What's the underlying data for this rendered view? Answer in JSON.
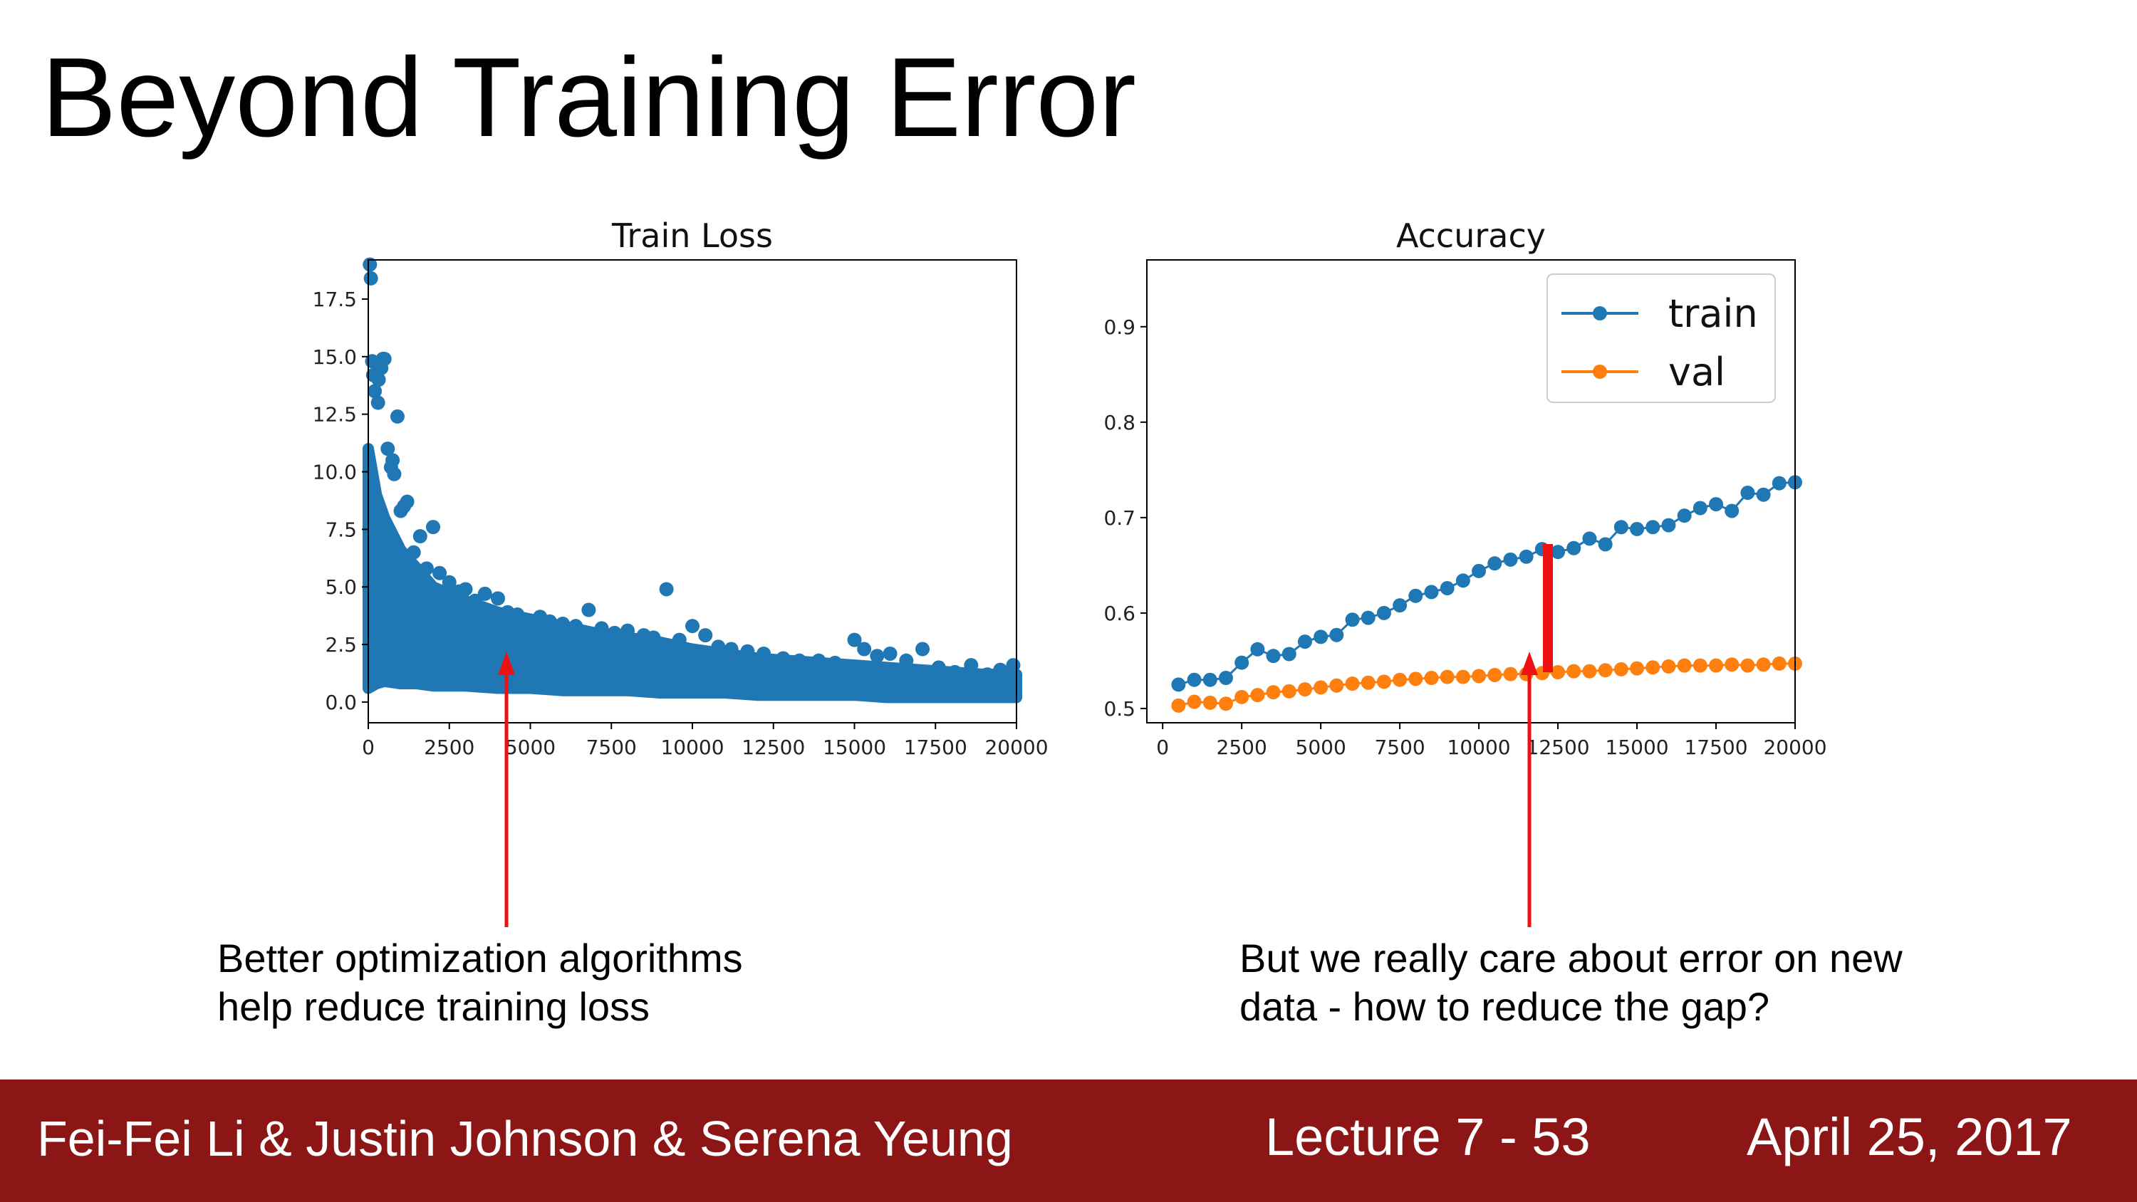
{
  "slide": {
    "title": "Beyond Training Error",
    "captions": [
      {
        "line1": "Better optimization algorithms",
        "line2": "help reduce training loss"
      },
      {
        "line1": "But we really care about error on new",
        "line2": "data - how to reduce the gap?"
      }
    ]
  },
  "footer": {
    "authors": "Fei-Fei Li & Justin Johnson & Serena Yeung",
    "lecture": "Lecture 7 - 53",
    "date": "April 25, 2017"
  },
  "colors": {
    "train": "#1f77b4",
    "val": "#ff7f0e",
    "arrow": "#ee1111",
    "footer": "#8c1515"
  },
  "chart_data": [
    {
      "type": "scatter",
      "title": "Train Loss",
      "xlabel": "",
      "ylabel": "",
      "xlim": [
        0,
        20000
      ],
      "ylim": [
        -0.9,
        19.2
      ],
      "xticks": [
        0,
        2500,
        5000,
        7500,
        10000,
        12500,
        15000,
        17500,
        20000
      ],
      "xtick_labels": [
        "0",
        "2500",
        "5000",
        "7500",
        "10000",
        "12500",
        "15000",
        "17500",
        "20000"
      ],
      "yticks": [
        0.0,
        2.5,
        5.0,
        7.5,
        10.0,
        12.5,
        15.0,
        17.5
      ],
      "ytick_labels": [
        "0.0",
        "2.5",
        "5.0",
        "7.5",
        "10.0",
        "12.5",
        "15.0",
        "17.5"
      ],
      "grid": false,
      "band": {
        "x": [
          0,
          250,
          500,
          1000,
          1500,
          2000,
          3000,
          4000,
          5000,
          6000,
          7000,
          8000,
          9000,
          10000,
          11000,
          12000,
          13000,
          14000,
          15000,
          16000,
          17000,
          18000,
          19000,
          20000
        ],
        "low": [
          0.6,
          0.8,
          0.9,
          0.8,
          0.8,
          0.7,
          0.7,
          0.6,
          0.6,
          0.5,
          0.5,
          0.5,
          0.4,
          0.4,
          0.4,
          0.3,
          0.3,
          0.3,
          0.3,
          0.2,
          0.2,
          0.2,
          0.2,
          0.2
        ],
        "high": [
          11.0,
          9.0,
          8.0,
          6.6,
          5.8,
          5.0,
          4.4,
          3.9,
          3.6,
          3.3,
          3.0,
          2.8,
          2.6,
          2.3,
          2.1,
          1.9,
          1.8,
          1.7,
          1.6,
          1.5,
          1.4,
          1.3,
          1.2,
          1.2
        ]
      },
      "x": [
        50,
        80,
        120,
        150,
        200,
        300,
        320,
        400,
        450,
        500,
        600,
        700,
        750,
        800,
        900,
        1000,
        1100,
        1200,
        1400,
        1600,
        1800,
        2000,
        2200,
        2500,
        2800,
        3000,
        3300,
        3600,
        4000,
        4300,
        4600,
        5000,
        5300,
        5600,
        6000,
        6400,
        6800,
        7200,
        7600,
        8000,
        8500,
        8800,
        9200,
        9600,
        10000,
        10400,
        10800,
        11200,
        11700,
        12200,
        12800,
        13300,
        13900,
        14400,
        15000,
        15300,
        15700,
        16100,
        16600,
        17100,
        17600,
        18100,
        18600,
        19100,
        19500,
        19900
      ],
      "y": [
        19.0,
        18.4,
        14.8,
        14.2,
        13.5,
        13.0,
        14.0,
        14.5,
        14.9,
        14.9,
        11.0,
        10.2,
        10.5,
        9.9,
        12.4,
        8.3,
        8.5,
        8.7,
        6.5,
        7.2,
        5.8,
        7.6,
        5.6,
        5.2,
        4.8,
        4.9,
        4.4,
        4.7,
        4.5,
        3.9,
        3.8,
        3.4,
        3.7,
        3.5,
        3.4,
        3.3,
        4.0,
        3.2,
        3.0,
        3.1,
        2.9,
        2.8,
        4.9,
        2.7,
        3.3,
        2.9,
        2.4,
        2.3,
        2.2,
        2.1,
        1.9,
        1.8,
        1.8,
        1.7,
        2.7,
        2.3,
        2.0,
        2.1,
        1.8,
        2.3,
        1.5,
        1.3,
        1.6,
        1.2,
        1.4,
        1.6
      ]
    },
    {
      "type": "line",
      "title": "Accuracy",
      "xlabel": "",
      "ylabel": "",
      "xlim": [
        -500,
        20000
      ],
      "ylim": [
        0.485,
        0.97
      ],
      "xticks": [
        0,
        2500,
        5000,
        7500,
        10000,
        12500,
        15000,
        17500,
        20000
      ],
      "xtick_labels": [
        "0",
        "2500",
        "5000",
        "7500",
        "10000",
        "12500",
        "15000",
        "17500",
        "20000"
      ],
      "yticks": [
        0.5,
        0.6,
        0.7,
        0.8,
        0.9
      ],
      "ytick_labels": [
        "0.5",
        "0.6",
        "0.7",
        "0.8",
        "0.9"
      ],
      "grid": false,
      "legend_position": "top-right",
      "x": [
        500,
        1000,
        1500,
        2000,
        2500,
        3000,
        3500,
        4000,
        4500,
        5000,
        5500,
        6000,
        6500,
        7000,
        7500,
        8000,
        8500,
        9000,
        9500,
        10000,
        10500,
        11000,
        11500,
        12000,
        12500,
        13000,
        13500,
        14000,
        14500,
        15000,
        15500,
        16000,
        16500,
        17000,
        17500,
        18000,
        18500,
        19000,
        19500,
        20000
      ],
      "series": [
        {
          "name": "train",
          "values": [
            0.525,
            0.53,
            0.53,
            0.532,
            0.548,
            0.562,
            0.555,
            0.557,
            0.57,
            0.575,
            0.577,
            0.593,
            0.595,
            0.6,
            0.608,
            0.618,
            0.622,
            0.626,
            0.634,
            0.644,
            0.652,
            0.656,
            0.659,
            0.667,
            0.664,
            0.668,
            0.678,
            0.672,
            0.69,
            0.688,
            0.69,
            0.692,
            0.702,
            0.71,
            0.714,
            0.707,
            0.726,
            0.724,
            0.736,
            0.737
          ]
        },
        {
          "name": "val",
          "values": [
            0.503,
            0.507,
            0.506,
            0.505,
            0.512,
            0.514,
            0.517,
            0.518,
            0.52,
            0.522,
            0.524,
            0.526,
            0.527,
            0.528,
            0.53,
            0.531,
            0.532,
            0.533,
            0.533,
            0.534,
            0.535,
            0.536,
            0.536,
            0.537,
            0.538,
            0.539,
            0.539,
            0.54,
            0.541,
            0.542,
            0.543,
            0.544,
            0.545,
            0.545,
            0.545,
            0.546,
            0.545,
            0.546,
            0.547,
            0.547
          ]
        }
      ]
    }
  ]
}
